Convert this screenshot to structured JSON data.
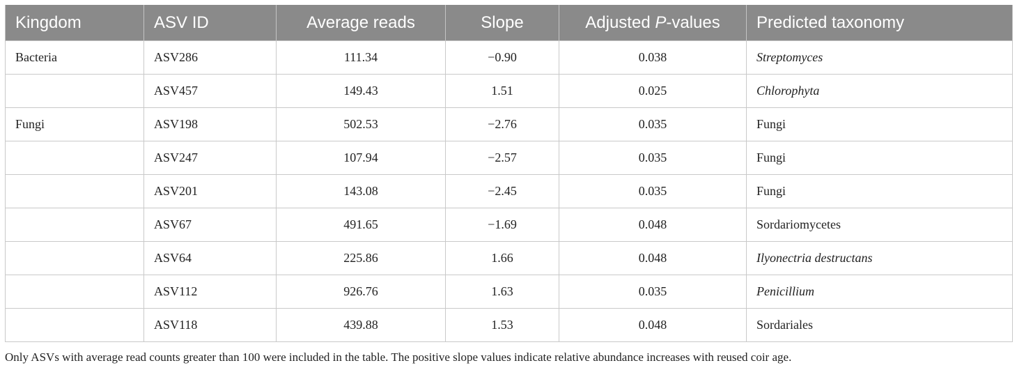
{
  "table": {
    "headers": {
      "kingdom": "Kingdom",
      "asv_id": "ASV ID",
      "average_reads": "Average reads",
      "slope": "Slope",
      "adj_p_prefix": "Adjusted ",
      "adj_p_italic": "P",
      "adj_p_suffix": "-values",
      "taxonomy": "Predicted taxonomy"
    },
    "rows": [
      {
        "kingdom": "Bacteria",
        "asv": "ASV286",
        "reads": "111.34",
        "slope": "−0.90",
        "p": "0.038",
        "taxonomy": "Streptomyces",
        "italic": true
      },
      {
        "kingdom": "",
        "asv": "ASV457",
        "reads": "149.43",
        "slope": "1.51",
        "p": "0.025",
        "taxonomy": "Chlorophyta",
        "italic": true
      },
      {
        "kingdom": "Fungi",
        "asv": "ASV198",
        "reads": "502.53",
        "slope": "−2.76",
        "p": "0.035",
        "taxonomy": "Fungi",
        "italic": false
      },
      {
        "kingdom": "",
        "asv": "ASV247",
        "reads": "107.94",
        "slope": "−2.57",
        "p": "0.035",
        "taxonomy": "Fungi",
        "italic": false
      },
      {
        "kingdom": "",
        "asv": "ASV201",
        "reads": "143.08",
        "slope": "−2.45",
        "p": "0.035",
        "taxonomy": "Fungi",
        "italic": false
      },
      {
        "kingdom": "",
        "asv": "ASV67",
        "reads": "491.65",
        "slope": "−1.69",
        "p": "0.048",
        "taxonomy": "Sordariomycetes",
        "italic": false
      },
      {
        "kingdom": "",
        "asv": "ASV64",
        "reads": "225.86",
        "slope": "1.66",
        "p": "0.048",
        "taxonomy": "Ilyonectria destructans",
        "italic": true
      },
      {
        "kingdom": "",
        "asv": "ASV112",
        "reads": "926.76",
        "slope": "1.63",
        "p": "0.035",
        "taxonomy": "Penicillium",
        "italic": true
      },
      {
        "kingdom": "",
        "asv": "ASV118",
        "reads": "439.88",
        "slope": "1.53",
        "p": "0.048",
        "taxonomy": "Sordariales",
        "italic": false
      }
    ]
  },
  "footnote": "Only ASVs with average read counts greater than 100 were included in the table. The positive slope values indicate relative abundance increases with reused coir age.",
  "colors": {
    "header_bg": "#8a8a8a",
    "header_text": "#ffffff",
    "grid": "#c9c9c9"
  }
}
